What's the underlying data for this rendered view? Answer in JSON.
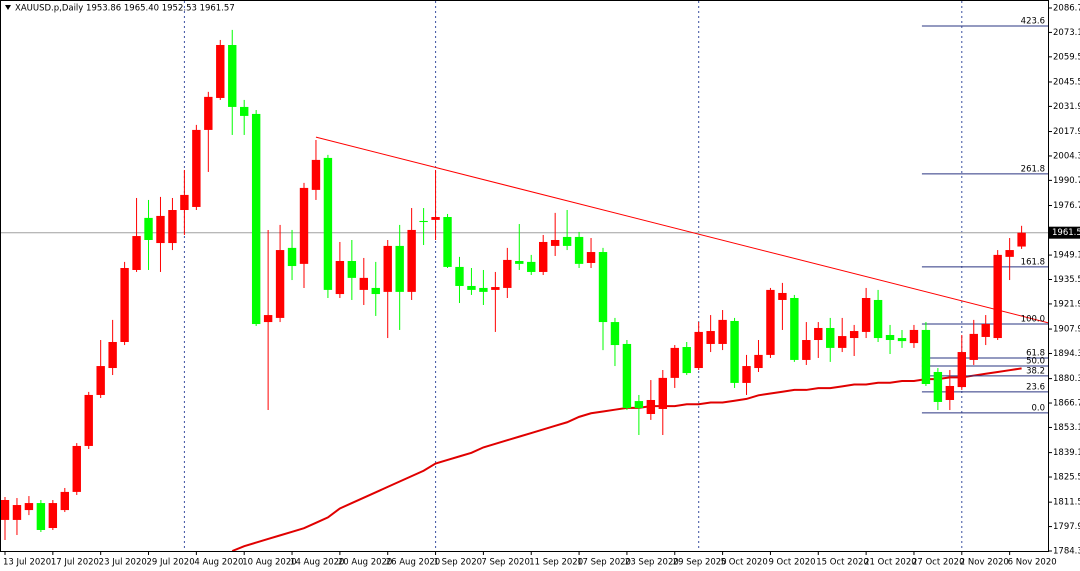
{
  "chart_data": {
    "type": "candlestick",
    "title": "XAUUSD.p,Daily  1953.86 1965.40 1952.53 1961.57",
    "categories": [
      "13 Jul 2020",
      null,
      null,
      null,
      "17 Jul 2020",
      null,
      null,
      null,
      "23 Jul 2020",
      null,
      null,
      null,
      "29 Jul 2020",
      null,
      null,
      null,
      "4 Aug 2020",
      null,
      null,
      null,
      "10 Aug 2020",
      null,
      null,
      null,
      "14 Aug 2020",
      null,
      null,
      null,
      "20 Aug 2020",
      null,
      null,
      null,
      "26 Aug 2020",
      null,
      null,
      null,
      "1 Sep 2020",
      null,
      null,
      null,
      "7 Sep 2020",
      null,
      null,
      null,
      "11 Sep 2020",
      null,
      null,
      null,
      "17 Sep 2020",
      null,
      null,
      null,
      "23 Sep 2020",
      null,
      null,
      null,
      "29 Sep 2020",
      null,
      null,
      null,
      "5 Oct 2020",
      null,
      null,
      null,
      "9 Oct 2020",
      null,
      null,
      null,
      "15 Oct 2020",
      null,
      null,
      null,
      "21 Oct 2020",
      null,
      null,
      null,
      "27 Oct 2020",
      null,
      null,
      null,
      "2 Nov 2020",
      null,
      null,
      null,
      "6 Nov 2020",
      null
    ],
    "open": [
      1801.6,
      1801.6,
      1807.1,
      1811.0,
      1797.1,
      1807.1,
      1817.2,
      1842.8,
      1871.2,
      1886.2,
      1900.7,
      1940.8,
      1969.8,
      1955.8,
      1955.8,
      1974.2,
      1975.9,
      2018.8,
      2036.6,
      2066.1,
      2031.6,
      2027.7,
      1911.8,
      1914.1,
      1953.1,
      1944.2,
      1985.4,
      2003.2,
      1927.4,
      1945.8,
      1929.7,
      1930.8,
      1928.6,
      1954.2,
      1928.6,
      1968.1,
      1968.7,
      1970.3,
      1942.5,
      1931.9,
      1930.8,
      1929.7,
      1930.8,
      1945.8,
      1945.3,
      1939.7,
      1954.2,
      1959.2,
      1959.2,
      1944.7,
      1950.8,
      1911.8,
      1899.6,
      1867.8,
      1860.6,
      1863.4,
      1880.7,
      1897.9,
      1886.2,
      1899.6,
      1899.6,
      1912.4,
      1877.9,
      1886.2,
      1893.5,
      1924.1,
      1925.2,
      1890.7,
      1901.8,
      1908.5,
      1897.4,
      1902.9,
      1906.3,
      1924.1,
      1904.6,
      1902.9,
      1900.1,
      1907.4,
      1884.0,
      1868.4,
      1875.6,
      1890.7,
      1903.5,
      1902.9,
      1948.1,
      1953.86
    ],
    "high": [
      1814.4,
      1813.8,
      1814.9,
      1812.7,
      1812.7,
      1819.4,
      1844.4,
      1872.9,
      1901.8,
      1913.0,
      1945.3,
      1980.9,
      1979.8,
      1981.5,
      1980.9,
      1996.5,
      2021.6,
      2040.0,
      2068.9,
      2074.5,
      2035.5,
      2029.9,
      1963.1,
      1965.9,
      1963.1,
      1989.3,
      2013.2,
      2004.9,
      1956.4,
      1957.5,
      1947.5,
      1945.3,
      1957.5,
      1965.9,
      1975.3,
      1975.3,
      1996.5,
      1972.0,
      1948.1,
      1941.9,
      1940.8,
      1939.7,
      1953.1,
      1966.4,
      1949.2,
      1960.3,
      1972.6,
      1974.2,
      1962.0,
      1958.6,
      1953.1,
      1914.1,
      1901.8,
      1871.2,
      1879.5,
      1885.1,
      1899.0,
      1900.7,
      1911.8,
      1915.7,
      1918.5,
      1914.1,
      1893.5,
      1901.8,
      1930.8,
      1933.6,
      1926.9,
      1911.8,
      1911.8,
      1914.1,
      1914.1,
      1910.2,
      1930.8,
      1929.7,
      1910.2,
      1907.4,
      1910.2,
      1911.8,
      1886.2,
      1885.1,
      1904.6,
      1913.0,
      1915.7,
      1951.9,
      1958.6,
      1965.4
    ],
    "low": [
      1790.4,
      1793.2,
      1804.3,
      1794.9,
      1796.0,
      1806.0,
      1815.5,
      1841.1,
      1869.5,
      1882.3,
      1899.0,
      1939.7,
      1940.8,
      1939.7,
      1951.9,
      1960.3,
      1974.2,
      1995.4,
      2035.5,
      2016.0,
      2016.0,
      1909.6,
      1862.8,
      1911.8,
      1935.2,
      1930.8,
      1979.8,
      1925.2,
      1925.2,
      1924.1,
      1921.3,
      1915.2,
      1902.9,
      1907.4,
      1924.1,
      1954.7,
      1957.5,
      1941.9,
      1922.4,
      1926.9,
      1921.3,
      1906.3,
      1925.2,
      1940.8,
      1938.0,
      1938.0,
      1948.6,
      1951.9,
      1941.9,
      1941.9,
      1896.2,
      1887.3,
      1862.8,
      1848.9,
      1857.3,
      1848.9,
      1875.1,
      1882.3,
      1885.1,
      1895.1,
      1896.2,
      1875.1,
      1871.2,
      1884.0,
      1891.8,
      1907.4,
      1889.6,
      1887.9,
      1891.8,
      1889.6,
      1895.1,
      1892.9,
      1902.9,
      1900.7,
      1894.0,
      1897.4,
      1897.4,
      1876.2,
      1862.8,
      1862.8,
      1874.0,
      1887.9,
      1899.0,
      1901.8,
      1935.2,
      1952.53
    ],
    "close": [
      1812.7,
      1809.9,
      1811.0,
      1796.0,
      1811.0,
      1817.2,
      1842.8,
      1871.2,
      1887.3,
      1900.7,
      1941.9,
      1959.7,
      1957.5,
      1970.9,
      1974.2,
      1982.6,
      2018.8,
      2037.2,
      2066.1,
      2031.6,
      2026.6,
      1910.7,
      1915.7,
      1951.9,
      1943.0,
      1986.5,
      2002.1,
      1929.7,
      1945.8,
      1936.4,
      1936.4,
      1927.4,
      1954.2,
      1928.6,
      1963.1,
      1967.5,
      1970.3,
      1942.5,
      1931.9,
      1929.7,
      1928.6,
      1931.3,
      1946.4,
      1944.2,
      1939.7,
      1956.4,
      1957.5,
      1954.2,
      1944.2,
      1950.8,
      1911.8,
      1899.0,
      1863.9,
      1863.9,
      1868.4,
      1880.7,
      1897.4,
      1883.4,
      1906.3,
      1906.8,
      1913.0,
      1877.9,
      1887.3,
      1893.5,
      1929.7,
      1928.0,
      1890.7,
      1901.8,
      1908.5,
      1897.4,
      1904.0,
      1906.8,
      1925.2,
      1902.9,
      1901.8,
      1901.2,
      1907.4,
      1877.3,
      1867.3,
      1876.2,
      1895.1,
      1905.2,
      1910.7,
      1949.2,
      1951.9,
      1961.57
    ],
    "up_color": "#ff0000",
    "down_color": "#00ff00",
    "overlays": [
      {
        "type": "line",
        "color": "#e00000",
        "values": [
          null,
          null,
          null,
          null,
          null,
          null,
          null,
          null,
          null,
          null,
          null,
          null,
          null,
          null,
          null,
          null,
          null,
          null,
          null,
          1784.3,
          1787,
          1789,
          1791,
          1793,
          1795,
          1797,
          1800,
          1803,
          1808,
          1811,
          1814,
          1817,
          1820,
          1823,
          1826,
          1829,
          1833,
          1835,
          1837,
          1839,
          1842,
          1844,
          1846,
          1848,
          1850,
          1852,
          1854,
          1856,
          1859,
          1861,
          1862,
          1863,
          1864,
          1864,
          1865,
          1865,
          1865,
          1866,
          1866,
          1867,
          1867,
          1868,
          1869,
          1871,
          1872,
          1873,
          1874,
          1874,
          1875,
          1875,
          1876,
          1877,
          1877,
          1878,
          1878,
          1879,
          1879,
          1880,
          1880,
          1881,
          1881,
          1882,
          1883,
          1884,
          1885,
          1886
        ]
      }
    ],
    "trendline": {
      "color": "#ff0000",
      "x": [
        26,
        80
      ],
      "y": [
        2014.8,
        1923.6
      ]
    },
    "fibonacci": {
      "start_x": 77,
      "levels": [
        {
          "label": "423.6",
          "price": 2076.7
        },
        {
          "label": "261.8",
          "price": 1994.3
        },
        {
          "label": "161.8",
          "price": 1942.5
        },
        {
          "label": "100.0",
          "price": 1910.7
        },
        {
          "label": "61.8",
          "price": 1891.8
        },
        {
          "label": "50.0",
          "price": 1887.3
        },
        {
          "label": "38.2",
          "price": 1881.8
        },
        {
          "label": "23.6",
          "price": 1872.9
        },
        {
          "label": "0.0",
          "price": 1861.2
        }
      ]
    },
    "last_price": {
      "value": 1961.57,
      "label": "1961.57"
    },
    "ylim": [
      1784.3,
      2086.7
    ],
    "yticks": [
      {
        "value": 2086.7,
        "label": "2086.70"
      },
      {
        "value": 2073.1,
        "label": "2073.10"
      },
      {
        "value": 2059.5,
        "label": "2059.50"
      },
      {
        "value": 2045.5,
        "label": "2045.50"
      },
      {
        "value": 2031.9,
        "label": "2031.90"
      },
      {
        "value": 2017.9,
        "label": "2017.90"
      },
      {
        "value": 2004.3,
        "label": "2004.30"
      },
      {
        "value": 1990.7,
        "label": "1990.70"
      },
      {
        "value": 1976.7,
        "label": "1976.70"
      },
      {
        "value": 1949.1,
        "label": "1949.10"
      },
      {
        "value": 1935.5,
        "label": "1935.50"
      },
      {
        "value": 1921.9,
        "label": "1921.90"
      },
      {
        "value": 1907.9,
        "label": "1907.90"
      },
      {
        "value": 1894.3,
        "label": "1894.30"
      },
      {
        "value": 1880.3,
        "label": "1880.30"
      },
      {
        "value": 1866.7,
        "label": "1866.70"
      },
      {
        "value": 1853.1,
        "label": "1853.10"
      },
      {
        "value": 1839.1,
        "label": "1839.10"
      },
      {
        "value": 1825.5,
        "label": "1825.50"
      },
      {
        "value": 1811.5,
        "label": "1811.50"
      },
      {
        "value": 1797.9,
        "label": "1797.90"
      },
      {
        "value": 1784.3,
        "label": "1784.30"
      }
    ],
    "grid": false
  }
}
